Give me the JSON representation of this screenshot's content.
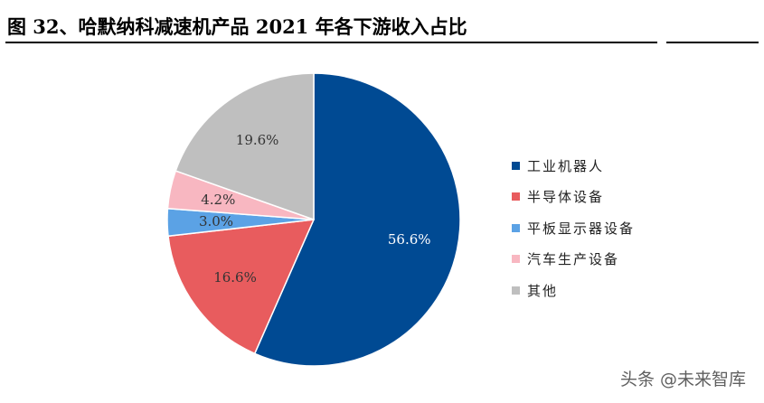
{
  "header": {
    "title": "图 32、哈默纳科减速机产品 2021 年各下游收入占比"
  },
  "watermark": "头条 @未来智库",
  "chart_data": {
    "type": "pie",
    "title": "图 32、哈默纳科减速机产品 2021 年各下游收入占比",
    "start_angle_deg": 0,
    "direction": "clockwise",
    "legend_position": "right",
    "slices": [
      {
        "label": "工业机器人",
        "value": 56.6,
        "display": "56.6%",
        "color": "#004a93",
        "label_color": "#ffffff"
      },
      {
        "label": "半导体设备",
        "value": 16.6,
        "display": "16.6%",
        "color": "#e85c5e",
        "label_color": "#333333"
      },
      {
        "label": "平板显示器设备",
        "value": 3.0,
        "display": "3.0%",
        "color": "#5ba2e5",
        "label_color": "#333333"
      },
      {
        "label": "汽车生产设备",
        "value": 4.2,
        "display": "4.2%",
        "color": "#f8b7c1",
        "label_color": "#333333"
      },
      {
        "label": "其他",
        "value": 19.6,
        "display": "19.6%",
        "color": "#bfbfbf",
        "label_color": "#333333"
      }
    ]
  }
}
